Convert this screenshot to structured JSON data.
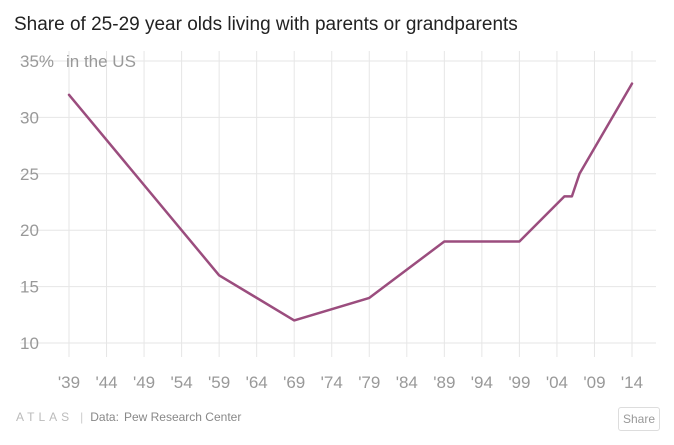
{
  "title": "Share of 25-29 year olds living with parents or grandparents",
  "footer": {
    "brand": "ATLAS",
    "data_label": "Data:",
    "source": "Pew Research Center"
  },
  "share_label": "Share",
  "colors": {
    "line": "#9b4d7e",
    "grid": "#e6e6e6",
    "tick": "#999999"
  },
  "chart_data": {
    "type": "line",
    "title": "Share of 25-29 year olds living with parents or grandparents",
    "ylabel": "in the US",
    "ylim": [
      10,
      35
    ],
    "yticks": [
      10,
      15,
      20,
      25,
      30,
      35
    ],
    "xlim": [
      1939,
      2014
    ],
    "xticks": [
      {
        "value": 1939,
        "label": "'39"
      },
      {
        "value": 1944,
        "label": "'44"
      },
      {
        "value": 1949,
        "label": "'49"
      },
      {
        "value": 1954,
        "label": "'54"
      },
      {
        "value": 1959,
        "label": "'59"
      },
      {
        "value": 1964,
        "label": "'64"
      },
      {
        "value": 1969,
        "label": "'69"
      },
      {
        "value": 1974,
        "label": "'74"
      },
      {
        "value": 1979,
        "label": "'79"
      },
      {
        "value": 1984,
        "label": "'84"
      },
      {
        "value": 1989,
        "label": "'89"
      },
      {
        "value": 1994,
        "label": "'94"
      },
      {
        "value": 1999,
        "label": "'99"
      },
      {
        "value": 2004,
        "label": "'04"
      },
      {
        "value": 2009,
        "label": "'09"
      },
      {
        "value": 2014,
        "label": "'14"
      }
    ],
    "grid": true,
    "series": [
      {
        "x": [
          1939,
          1959,
          1969,
          1979,
          1989,
          1999,
          2005,
          2006,
          2007,
          2014
        ],
        "values": [
          32,
          16,
          12,
          14,
          19,
          19,
          23,
          23,
          25,
          33
        ]
      }
    ]
  }
}
